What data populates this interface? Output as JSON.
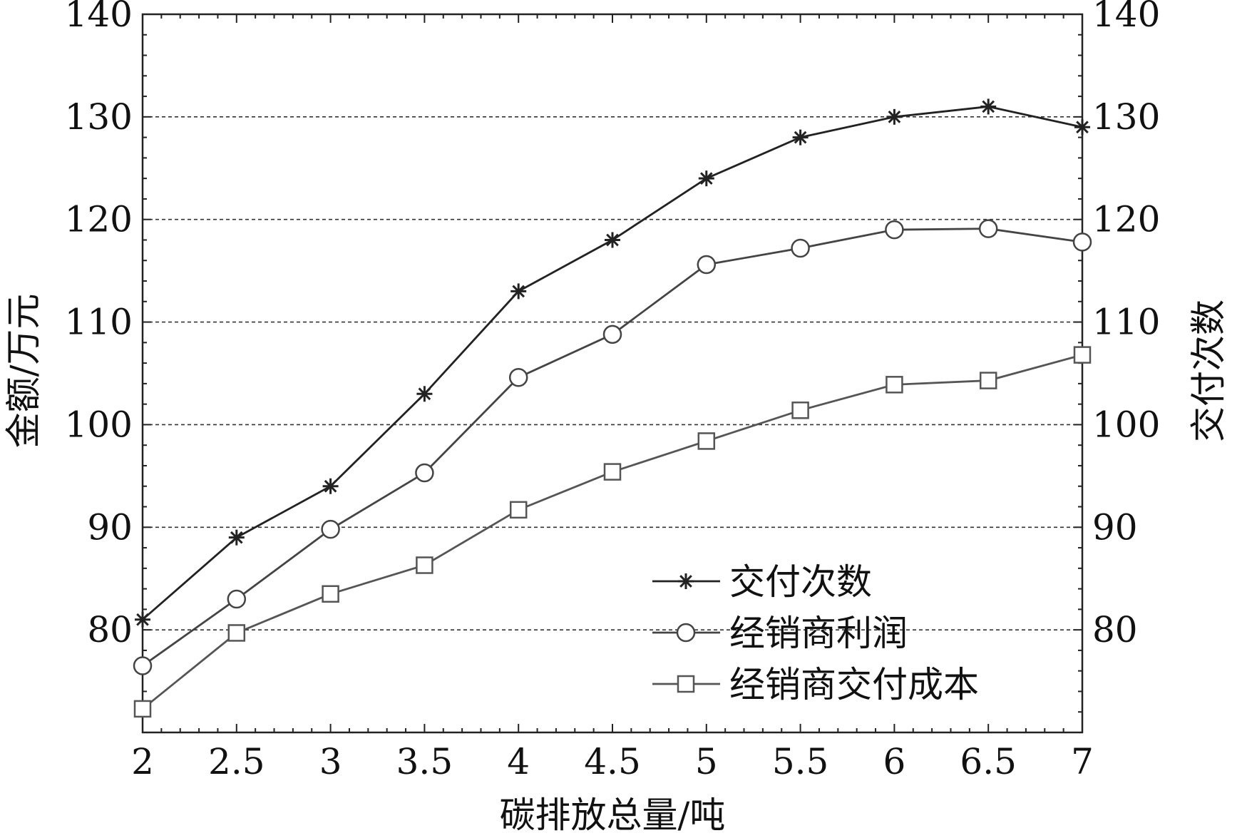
{
  "chart_data": {
    "type": "line",
    "title": "",
    "xlabel": "碳排放总量/吨",
    "ylabel_left": "金额/万元",
    "ylabel_right": "交付次数",
    "x": [
      2,
      2.5,
      3,
      3.5,
      4,
      4.5,
      5,
      5.5,
      6,
      6.5,
      7
    ],
    "x_ticks": [
      "2",
      "2.5",
      "3",
      "3.5",
      "4",
      "4.5",
      "5",
      "5.5",
      "6",
      "6.5",
      "7"
    ],
    "xlim": [
      2,
      7
    ],
    "ylim": [
      70,
      140
    ],
    "y_ticks": [
      "80",
      "90",
      "100",
      "110",
      "120",
      "130",
      "140"
    ],
    "y_tick_values": [
      80,
      90,
      100,
      110,
      120,
      130,
      140
    ],
    "grid": "horizontal dashed",
    "legend_position": "bottom-right",
    "series": [
      {
        "name": "交付次数",
        "marker": "star",
        "color": "#222222",
        "values": [
          81,
          89,
          94,
          103,
          113,
          118,
          124,
          128,
          130,
          131,
          129
        ]
      },
      {
        "name": "经销商利润",
        "marker": "circle",
        "color": "#444444",
        "values": [
          76.5,
          83,
          89.8,
          95.3,
          104.6,
          108.8,
          115.6,
          117.2,
          119,
          119.1,
          117.8
        ]
      },
      {
        "name": "经销商交付成本",
        "marker": "square",
        "color": "#555555",
        "values": [
          72.3,
          79.7,
          83.5,
          86.3,
          91.7,
          95.4,
          98.4,
          101.4,
          103.9,
          104.3,
          106.8
        ]
      }
    ]
  }
}
